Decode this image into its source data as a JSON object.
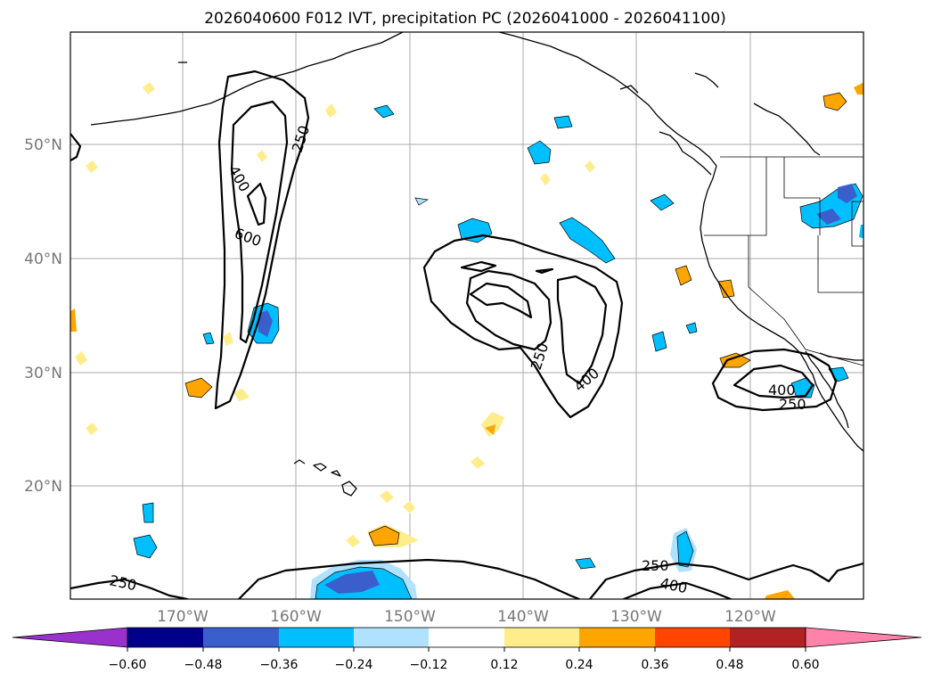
{
  "title": "2026040600 F012 IVT, precipitation PC (2026041000 - 2026041100)",
  "lat_labels": [
    "50°N",
    "40°N",
    "30°N",
    "20°N"
  ],
  "lon_labels": [
    "170°W",
    "160°W",
    "150°W",
    "140°W",
    "130°W",
    "120°W"
  ],
  "colorbar": {
    "ticks": [
      "−0.60",
      "−0.48",
      "−0.36",
      "−0.24",
      "−0.12",
      "0.12",
      "0.24",
      "0.36",
      "0.48",
      "0.60"
    ],
    "colors": [
      "#9932cc",
      "#00008b",
      "#3a5fcd",
      "#00bfff",
      "#b0e2ff",
      "#ffffff",
      "#ffec8b",
      "#ffa500",
      "#ff4500",
      "#b22222",
      "#ff82ab"
    ]
  },
  "contour_labels": [
    {
      "text": "250"
    },
    {
      "text": "400"
    },
    {
      "text": "600"
    },
    {
      "text": "250"
    },
    {
      "text": "400"
    },
    {
      "text": "400"
    },
    {
      "text": "250"
    },
    {
      "text": "250"
    },
    {
      "text": "400"
    },
    {
      "text": "250"
    }
  ],
  "colors": {
    "pc_lightblue": "#b0e2ff",
    "pc_blue": "#00bfff",
    "pc_royal": "#3a5fcd",
    "pc_yellow": "#ffec8b",
    "pc_orange": "#ffa500",
    "grid": "#aaaaaa",
    "axis_label": "#777777"
  }
}
